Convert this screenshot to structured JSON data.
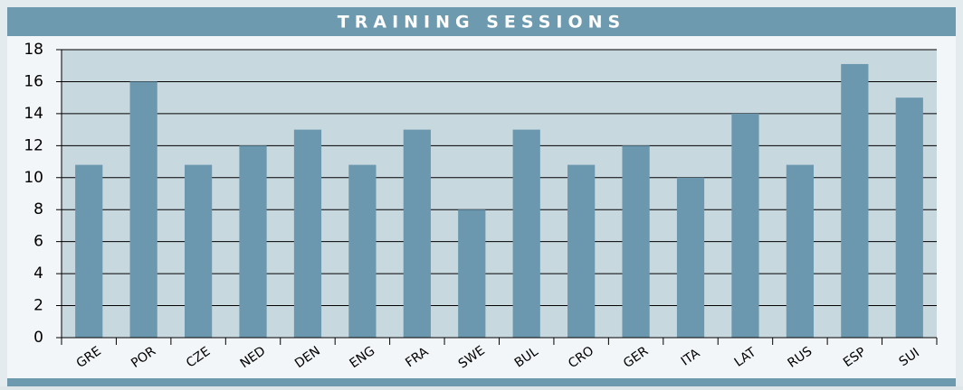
{
  "chart_data": {
    "type": "bar",
    "title": "TRAINING SESSIONS",
    "categories": [
      "GRE",
      "POR",
      "CZE",
      "NED",
      "DEN",
      "ENG",
      "FRA",
      "SWE",
      "BUL",
      "CRO",
      "GER",
      "ITA",
      "LAT",
      "RUS",
      "ESP",
      "SUI"
    ],
    "values": [
      10.8,
      16,
      10.8,
      12,
      13,
      10.8,
      13,
      8,
      13,
      10.8,
      12,
      10,
      14,
      10.8,
      17.1,
      15
    ],
    "color": "#6b98ae",
    "ylim": [
      0,
      18
    ],
    "yticks": [
      0,
      2,
      4,
      6,
      8,
      10,
      12,
      14,
      16,
      18
    ],
    "grid": true
  }
}
